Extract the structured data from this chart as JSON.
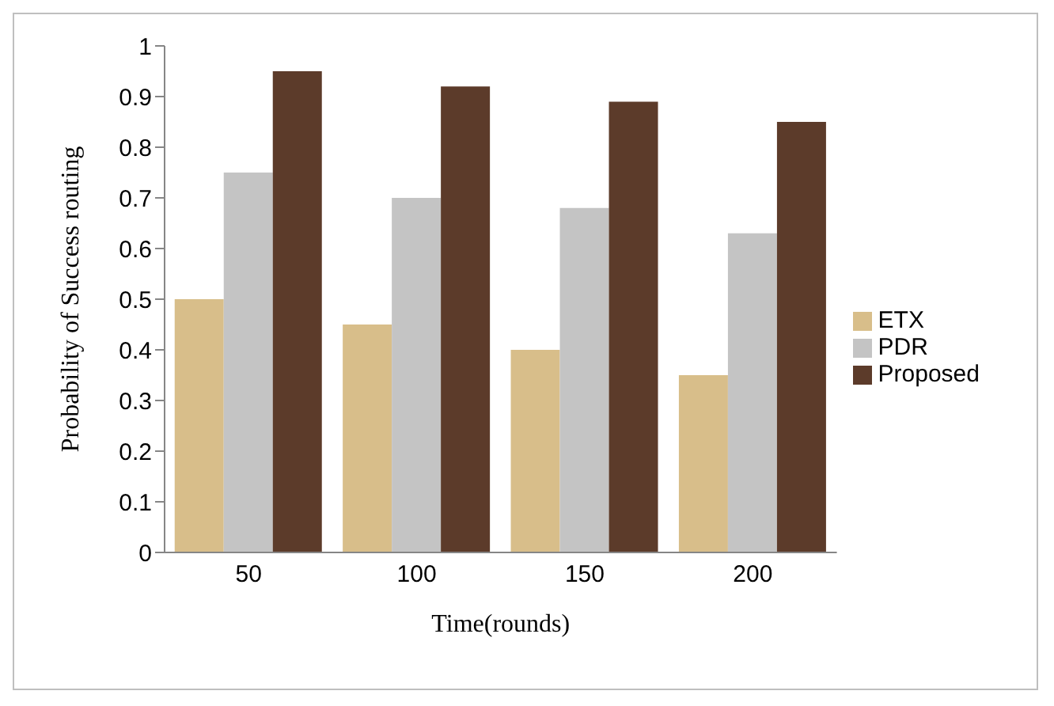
{
  "chart_data": {
    "type": "bar",
    "xlabel": "Time(rounds)",
    "ylabel": "Probability of Success routing",
    "categories": [
      "50",
      "100",
      "150",
      "200"
    ],
    "series": [
      {
        "name": "ETX",
        "color": "#d8be8a",
        "values": [
          0.5,
          0.45,
          0.4,
          0.35
        ]
      },
      {
        "name": "PDR",
        "color": "#c4c4c4",
        "values": [
          0.75,
          0.7,
          0.68,
          0.63
        ]
      },
      {
        "name": "Proposed",
        "color": "#5c3b2a",
        "values": [
          0.95,
          0.92,
          0.89,
          0.85
        ]
      }
    ],
    "ylim": [
      0,
      1
    ],
    "yticks": [
      0,
      0.1,
      0.2,
      0.3,
      0.4,
      0.5,
      0.6,
      0.7,
      0.8,
      0.9,
      1
    ],
    "grid": false,
    "legend": "right"
  }
}
